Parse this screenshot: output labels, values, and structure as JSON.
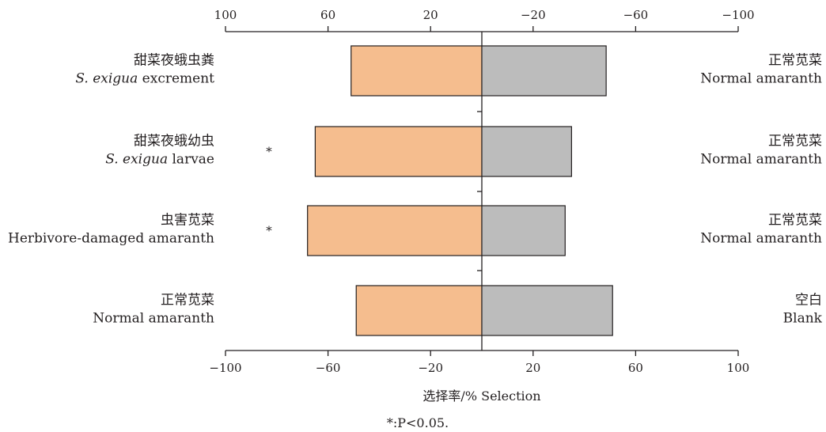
{
  "chart_data": {
    "type": "bar",
    "orientation": "horizontal-diverging",
    "xlabel": "选择率/% Selection",
    "footnote": "*:P<0.05.",
    "xlim": [
      -100,
      100
    ],
    "bottom_ticks": [
      "−100",
      "−60",
      "−20",
      "20",
      "60",
      "100"
    ],
    "top_ticks": [
      "100",
      "60",
      "20",
      "−20",
      "−60",
      "−100"
    ],
    "left_colors": "#f5bd8e",
    "right_colors": "#bcbcbc",
    "categories": [
      {
        "left_cn": "甜菜夜蛾虫粪",
        "left_en_italic": "S. exigua",
        "left_en_rest": " excrement",
        "right_cn": "正常苋菜",
        "right_en": "Normal amaranth",
        "significance": "",
        "left_value": -51,
        "right_value": 48.5
      },
      {
        "left_cn": "甜菜夜蛾幼虫",
        "left_en_italic": "S. exigua",
        "left_en_rest": " larvae",
        "right_cn": "正常苋菜",
        "right_en": "Normal amaranth",
        "significance": "*",
        "left_value": -65,
        "right_value": 35
      },
      {
        "left_cn": "虫害苋菜",
        "left_en_italic": "",
        "left_en_rest": "Herbivore-damaged amaranth",
        "right_cn": "正常苋菜",
        "right_en": "Normal amaranth",
        "significance": "*",
        "left_value": -68,
        "right_value": 32.5
      },
      {
        "left_cn": "正常苋菜",
        "left_en_italic": "",
        "left_en_rest": "Normal amaranth",
        "right_cn": "空白",
        "right_en": "Blank",
        "significance": "",
        "left_value": -49,
        "right_value": 51
      }
    ]
  }
}
